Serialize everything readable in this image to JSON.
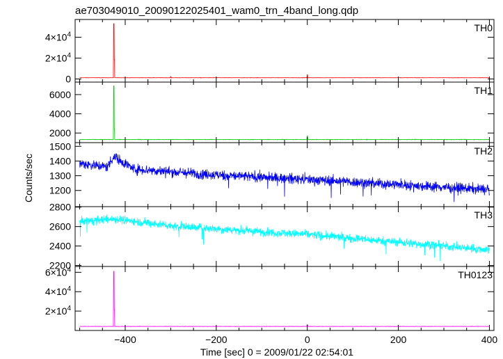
{
  "chart_data": {
    "type": "line",
    "title": "ae703049010_20090122025401_wam0_trn_4band_long.qdp",
    "xlabel": "Time [sec] 0 = 2009/01/22 02:54:01",
    "ylabel": "Counts/sec",
    "xlim": [
      -510,
      410
    ],
    "x_ticks": [
      -400,
      -200,
      0,
      200,
      400
    ],
    "x_tick_labels": [
      "−400",
      "−200",
      "0",
      "200",
      "400"
    ],
    "grid": false,
    "panels": [
      {
        "name": "TH0",
        "color": "#ff0000",
        "ylim": [
          -3000,
          57000
        ],
        "y_ticks": [
          0,
          20000,
          40000
        ],
        "y_tick_labels": [
          {
            "m": "0",
            "e": ""
          },
          {
            "m": "2×10",
            "e": "4"
          },
          {
            "m": "4×10",
            "e": "4"
          }
        ],
        "baseline": 1200,
        "noise": 220,
        "spike": {
          "x": -425,
          "peak": 53000
        },
        "bumps": [
          {
            "x": -300,
            "v": 2200
          },
          {
            "x": 0,
            "v": 4000
          }
        ]
      },
      {
        "name": "TH1",
        "color": "#00cc00",
        "ylim": [
          1000,
          7300
        ],
        "y_ticks": [
          2000,
          4000,
          6000
        ],
        "y_tick_labels": [
          {
            "m": "2000",
            "e": ""
          },
          {
            "m": "4000",
            "e": ""
          },
          {
            "m": "6000",
            "e": ""
          }
        ],
        "baseline": 1320,
        "noise": 35,
        "spike": {
          "x": -425,
          "peak": 6900
        },
        "bumps": [
          {
            "x": 0,
            "v": 1700
          }
        ]
      },
      {
        "name": "TH2",
        "color": "#0000ff",
        "ylim": [
          1090,
          1525
        ],
        "y_ticks": [
          1200,
          1300,
          1400,
          1500
        ],
        "y_tick_labels": [
          {
            "m": "1200",
            "e": ""
          },
          {
            "m": "1300",
            "e": ""
          },
          {
            "m": "1400",
            "e": ""
          },
          {
            "m": "1500",
            "e": ""
          }
        ],
        "trend": [
          [
            -500,
            1385
          ],
          [
            -440,
            1360
          ],
          [
            -425,
            1430
          ],
          [
            -380,
            1345
          ],
          [
            -200,
            1305
          ],
          [
            0,
            1275
          ],
          [
            200,
            1240
          ],
          [
            400,
            1205
          ]
        ],
        "noise": 45
      },
      {
        "name": "TH3",
        "color": "#00ffff",
        "ylim": [
          2190,
          2805
        ],
        "y_ticks": [
          2200,
          2400,
          2600,
          2800
        ],
        "y_tick_labels": [
          {
            "m": "2200",
            "e": ""
          },
          {
            "m": "2400",
            "e": ""
          },
          {
            "m": "2600",
            "e": ""
          },
          {
            "m": "2800",
            "e": ""
          }
        ],
        "trend": [
          [
            -500,
            2650
          ],
          [
            -425,
            2680
          ],
          [
            -300,
            2610
          ],
          [
            -100,
            2545
          ],
          [
            0,
            2520
          ],
          [
            200,
            2440
          ],
          [
            400,
            2360
          ]
        ],
        "noise": 55
      },
      {
        "name": "TH0123",
        "color": "#ff00ff",
        "ylim": [
          0,
          66000
        ],
        "y_ticks": [
          20000,
          40000,
          60000
        ],
        "y_tick_labels": [
          {
            "m": "2×10",
            "e": "4"
          },
          {
            "m": "4×10",
            "e": "4"
          },
          {
            "m": "6×10",
            "e": "4"
          }
        ],
        "baseline": 4200,
        "noise": 250,
        "spike": {
          "x": -425,
          "peak": 61000
        },
        "bumps": [
          {
            "x": 0,
            "v": 6000
          }
        ]
      }
    ]
  }
}
